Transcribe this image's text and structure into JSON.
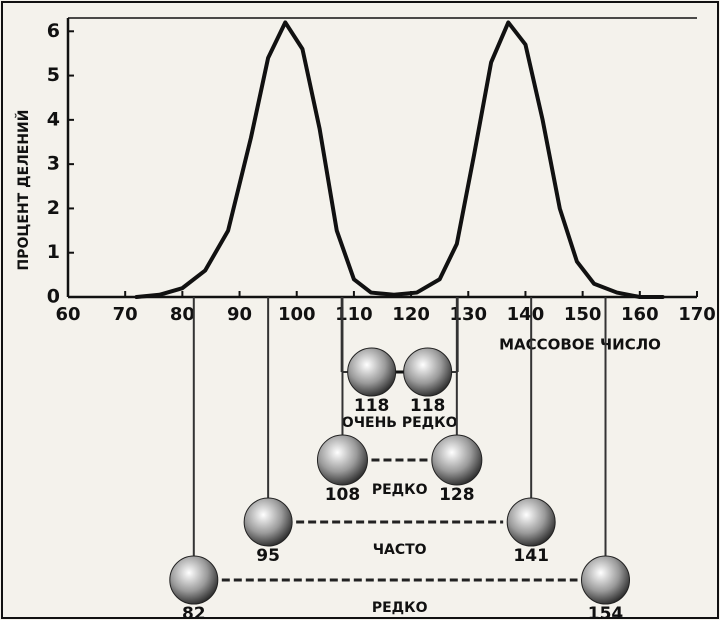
{
  "chart_data": {
    "type": "line",
    "y_label": "ПРОЦЕНТ ДЕЛЕНИЙ",
    "x_label": "МАССОВОЕ ЧИСЛО",
    "x": [
      72,
      76,
      80,
      84,
      88,
      92,
      95,
      98,
      101,
      104,
      107,
      110,
      113,
      117,
      121,
      125,
      128,
      131,
      134,
      137,
      140,
      143,
      146,
      149,
      152,
      156,
      160,
      164
    ],
    "series": [
      {
        "color": "#111111",
        "values": [
          0,
          0.05,
          0.2,
          0.6,
          1.5,
          3.6,
          5.4,
          6.2,
          5.6,
          3.8,
          1.5,
          0.4,
          0.1,
          0.05,
          0.1,
          0.4,
          1.2,
          3.2,
          5.3,
          6.2,
          5.7,
          4.0,
          2.0,
          0.8,
          0.3,
          0.1,
          0,
          0
        ]
      }
    ],
    "xlim": [
      60,
      170
    ],
    "xticks": [
      60,
      70,
      80,
      90,
      100,
      110,
      120,
      130,
      140,
      150,
      160,
      170
    ],
    "ylim": [
      0,
      6.3
    ],
    "yticks": [
      0,
      1,
      2,
      3,
      4,
      5,
      6
    ],
    "grid": false
  },
  "diagram": {
    "pairs": [
      {
        "left": 118,
        "right": 118,
        "label": "ОЧЕНЬ РЕДКО"
      },
      {
        "left": 108,
        "right": 128,
        "label": "РЕДКО"
      },
      {
        "left": 95,
        "right": 141,
        "label": "ЧАСТО"
      },
      {
        "left": 82,
        "right": 154,
        "label": "РЕДКО"
      }
    ]
  }
}
